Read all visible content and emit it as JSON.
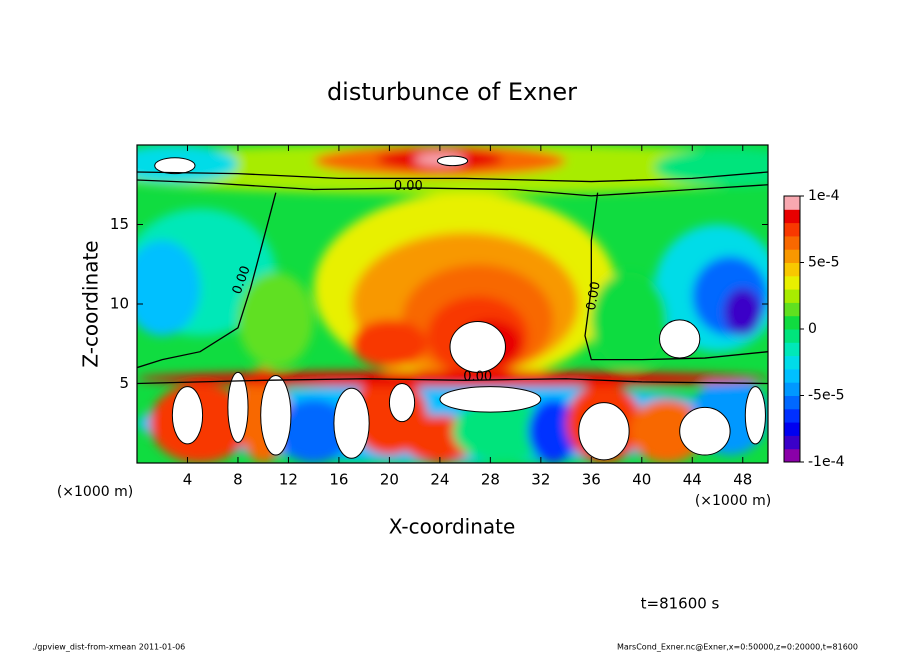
{
  "chart_data": {
    "type": "contour",
    "title": "disturbunce of Exner",
    "xlabel": "X-coordinate",
    "ylabel": "Z-coordinate",
    "axis_unit": "(×1000 m)",
    "xlim": [
      0,
      50
    ],
    "xticks": [
      4,
      8,
      12,
      16,
      20,
      24,
      28,
      32,
      36,
      40,
      44,
      48
    ],
    "ylim": [
      0,
      20
    ],
    "yticks": [
      5,
      10,
      15
    ],
    "clim": [
      -0.0001,
      0.0001
    ],
    "cticks": [
      {
        "value": 0.0001,
        "label": "1e-4"
      },
      {
        "value": 5e-05,
        "label": "5e-5"
      },
      0,
      {
        "value": -5e-05,
        "label": "-5e-5"
      },
      {
        "value": -0.0001,
        "label": "-1e-4"
      }
    ],
    "colormap": [
      "#8a00a8",
      "#3a00c8",
      "#0000f0",
      "#0030ff",
      "#0068ff",
      "#0098ff",
      "#00c0ff",
      "#00dce8",
      "#00e8b8",
      "#00e47c",
      "#10dc40",
      "#60e020",
      "#a8ec00",
      "#e8f000",
      "#f8c800",
      "#f89800",
      "#f86800",
      "#f83800",
      "#e80000",
      "#f8a8b0"
    ],
    "contour_label": "0.00",
    "time_label": "t=81600 s",
    "footer_left": "./gpview_dist-from-xmean  2011-01-06",
    "footer_right": "MarsCond_Exner.nc@Exner,x=0:50000,z=0:20000,t=81600"
  }
}
